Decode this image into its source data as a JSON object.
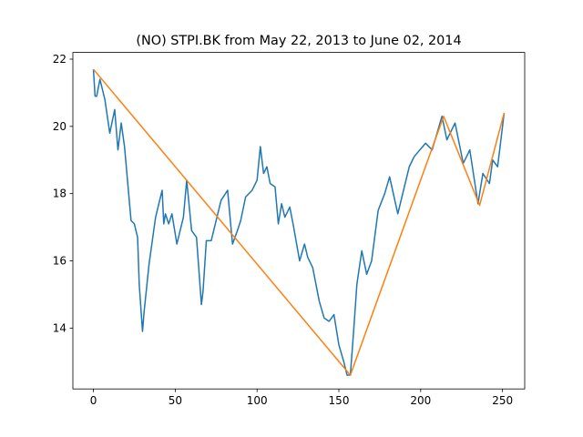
{
  "chart_data": {
    "type": "line",
    "title": "(NO) STPI.BK from May 22, 2013 to June 02, 2014",
    "series": [
      {
        "color": "#1f77b4",
        "x": [
          0,
          1,
          2,
          4,
          7,
          10,
          13,
          15,
          17,
          19,
          23,
          25,
          27,
          28,
          30,
          31,
          34,
          38,
          42,
          43,
          44,
          46,
          48,
          51,
          55,
          57,
          60,
          63,
          66,
          67,
          69,
          72,
          76,
          78,
          82,
          85,
          88,
          90,
          93,
          97,
          100,
          102,
          104,
          106,
          108,
          111,
          113,
          115,
          117,
          120,
          122,
          126,
          129,
          131,
          134,
          138,
          141,
          144,
          147,
          150,
          153,
          155,
          157,
          159,
          161,
          164,
          167,
          170,
          174,
          178,
          181,
          186,
          193,
          196,
          203,
          207,
          213,
          216,
          221,
          226,
          230,
          235,
          238,
          242,
          244,
          247,
          251
        ],
        "values": [
          21.7,
          20.9,
          20.9,
          21.4,
          20.8,
          19.8,
          20.5,
          19.3,
          20.1,
          19.4,
          17.2,
          17.1,
          16.7,
          15.3,
          13.9,
          14.5,
          15.9,
          17.3,
          18.1,
          17.1,
          17.4,
          17.1,
          17.4,
          16.5,
          17.3,
          18.4,
          16.9,
          16.7,
          14.7,
          15.1,
          16.6,
          16.6,
          17.4,
          17.8,
          18.1,
          16.5,
          16.9,
          17.2,
          17.9,
          18.1,
          18.4,
          19.4,
          18.6,
          18.8,
          18.3,
          18.2,
          17.1,
          17.7,
          17.3,
          17.6,
          17.1,
          16.0,
          16.5,
          16.1,
          15.8,
          14.8,
          14.3,
          14.2,
          14.4,
          13.5,
          13.0,
          12.6,
          12.6,
          13.9,
          15.3,
          16.3,
          15.6,
          16.0,
          17.5,
          18.0,
          18.5,
          17.4,
          18.8,
          19.1,
          19.5,
          19.3,
          20.3,
          19.6,
          20.1,
          18.9,
          19.3,
          17.7,
          18.6,
          18.3,
          19.0,
          18.8,
          20.4
        ]
      },
      {
        "color": "#ff7f0e",
        "x": [
          0,
          157,
          214,
          236,
          251
        ],
        "values": [
          21.7,
          12.6,
          20.3,
          17.65,
          20.4
        ]
      }
    ],
    "xlim": [
      -12.55,
      263.55
    ],
    "ylim": [
      12.19,
      22.2
    ],
    "xticks": [
      0,
      50,
      100,
      150,
      200,
      250
    ],
    "yticks": [
      14,
      16,
      18,
      20,
      22
    ]
  }
}
